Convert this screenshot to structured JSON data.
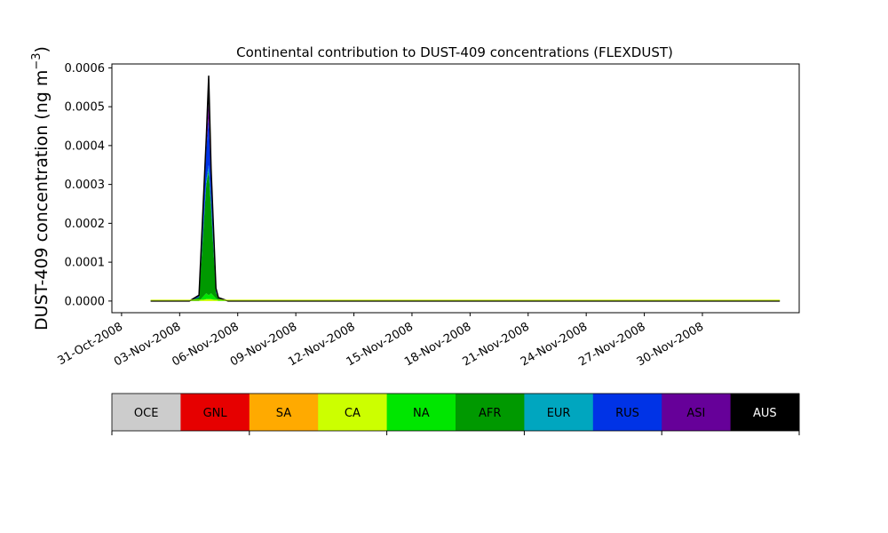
{
  "chart_data": {
    "type": "area",
    "title": "Continental contribution to DUST-409 concentrations (FLEXDUST)",
    "ylabel": "DUST-409 concentration (ng m",
    "ylabel_sup": "−3",
    "ylabel_close": ")",
    "xlabel": "",
    "ylim": [
      -3e-05,
      0.00061
    ],
    "yticks": [
      0.0,
      0.0001,
      0.0002,
      0.0003,
      0.0004,
      0.0005,
      0.0006
    ],
    "ytick_labels": [
      "0.0000",
      "0.0001",
      "0.0002",
      "0.0003",
      "0.0004",
      "0.0005",
      "0.0006"
    ],
    "xlim": [
      "2008-10-30T12:00",
      "2008-12-05T00:00"
    ],
    "xticks": [
      "2008-10-31",
      "2008-11-03",
      "2008-11-06",
      "2008-11-09",
      "2008-11-12",
      "2008-11-15",
      "2008-11-18",
      "2008-11-21",
      "2008-11-24",
      "2008-11-27",
      "2008-11-30"
    ],
    "xtick_labels": [
      "31-Oct-2008",
      "03-Nov-2008",
      "06-Nov-2008",
      "09-Nov-2008",
      "12-Nov-2008",
      "15-Nov-2008",
      "18-Nov-2008",
      "21-Nov-2008",
      "24-Nov-2008",
      "27-Nov-2008",
      "30-Nov-2008"
    ],
    "x": [
      "2008-11-01T12:00",
      "2008-11-03T12:00",
      "2008-11-04T00:00",
      "2008-11-04T09:00",
      "2008-11-04T12:00",
      "2008-11-04T15:00",
      "2008-11-04T21:00",
      "2008-11-05T00:00",
      "2008-11-05T12:00",
      "2008-12-04T00:00"
    ],
    "series": [
      {
        "name": "OCE",
        "color": "#cccccc",
        "values": [
          0,
          0,
          0,
          0,
          0,
          0,
          0,
          0,
          0,
          0
        ]
      },
      {
        "name": "GNL",
        "color": "#e60000",
        "values": [
          0,
          0,
          0,
          0,
          0,
          0,
          0,
          0,
          0,
          0
        ]
      },
      {
        "name": "SA",
        "color": "#ffaa00",
        "values": [
          0,
          0,
          0,
          0,
          0,
          0,
          0,
          0,
          0,
          0
        ]
      },
      {
        "name": "CA",
        "color": "#ccff00",
        "values": [
          0,
          0,
          0,
          5e-06,
          5e-06,
          5e-06,
          2e-06,
          0,
          0,
          0
        ]
      },
      {
        "name": "NA",
        "color": "#00e600",
        "values": [
          0,
          0,
          0,
          1.5e-05,
          1e-05,
          1.5e-05,
          5e-06,
          2e-06,
          0,
          0
        ]
      },
      {
        "name": "AFR",
        "color": "#009900",
        "values": [
          0,
          0,
          1e-05,
          0.00028,
          0.00032,
          0.00022,
          1.5e-05,
          5e-06,
          0,
          0
        ]
      },
      {
        "name": "EUR",
        "color": "#00a6bf",
        "values": [
          0,
          0,
          0,
          1e-05,
          1.5e-05,
          1e-05,
          2e-06,
          0,
          0,
          0
        ]
      },
      {
        "name": "RUS",
        "color": "#0033e6",
        "values": [
          0,
          0,
          5e-06,
          8e-05,
          0.00012,
          6e-05,
          5e-06,
          2e-06,
          0,
          0
        ]
      },
      {
        "name": "ASI",
        "color": "#660099",
        "values": [
          0,
          0,
          0,
          2e-05,
          4e-05,
          2e-05,
          2e-06,
          0,
          0,
          0
        ]
      },
      {
        "name": "AUS",
        "color": "#000000",
        "values": [
          0,
          0,
          0,
          1e-05,
          7e-05,
          1e-05,
          2e-06,
          0,
          0,
          0
        ]
      }
    ],
    "legend_placement": "colorbar-below"
  }
}
